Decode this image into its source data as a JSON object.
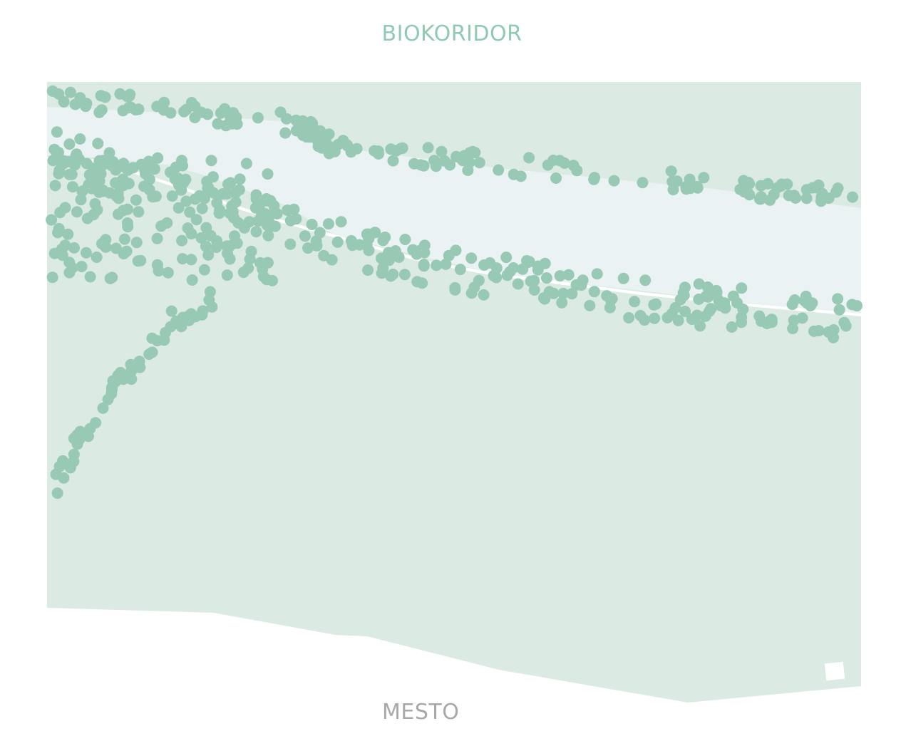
{
  "map": {
    "title": "BIOKORIDOR",
    "bottom_label": "MESTO"
  },
  "colors": {
    "title": "#8fcab2",
    "bottom_label": "#a8a8a8",
    "land": "#dbebe4",
    "river": "#eaf2f4",
    "bank": "#d6e9e0",
    "trees": "#97c9b5",
    "path": "#ffffff"
  }
}
